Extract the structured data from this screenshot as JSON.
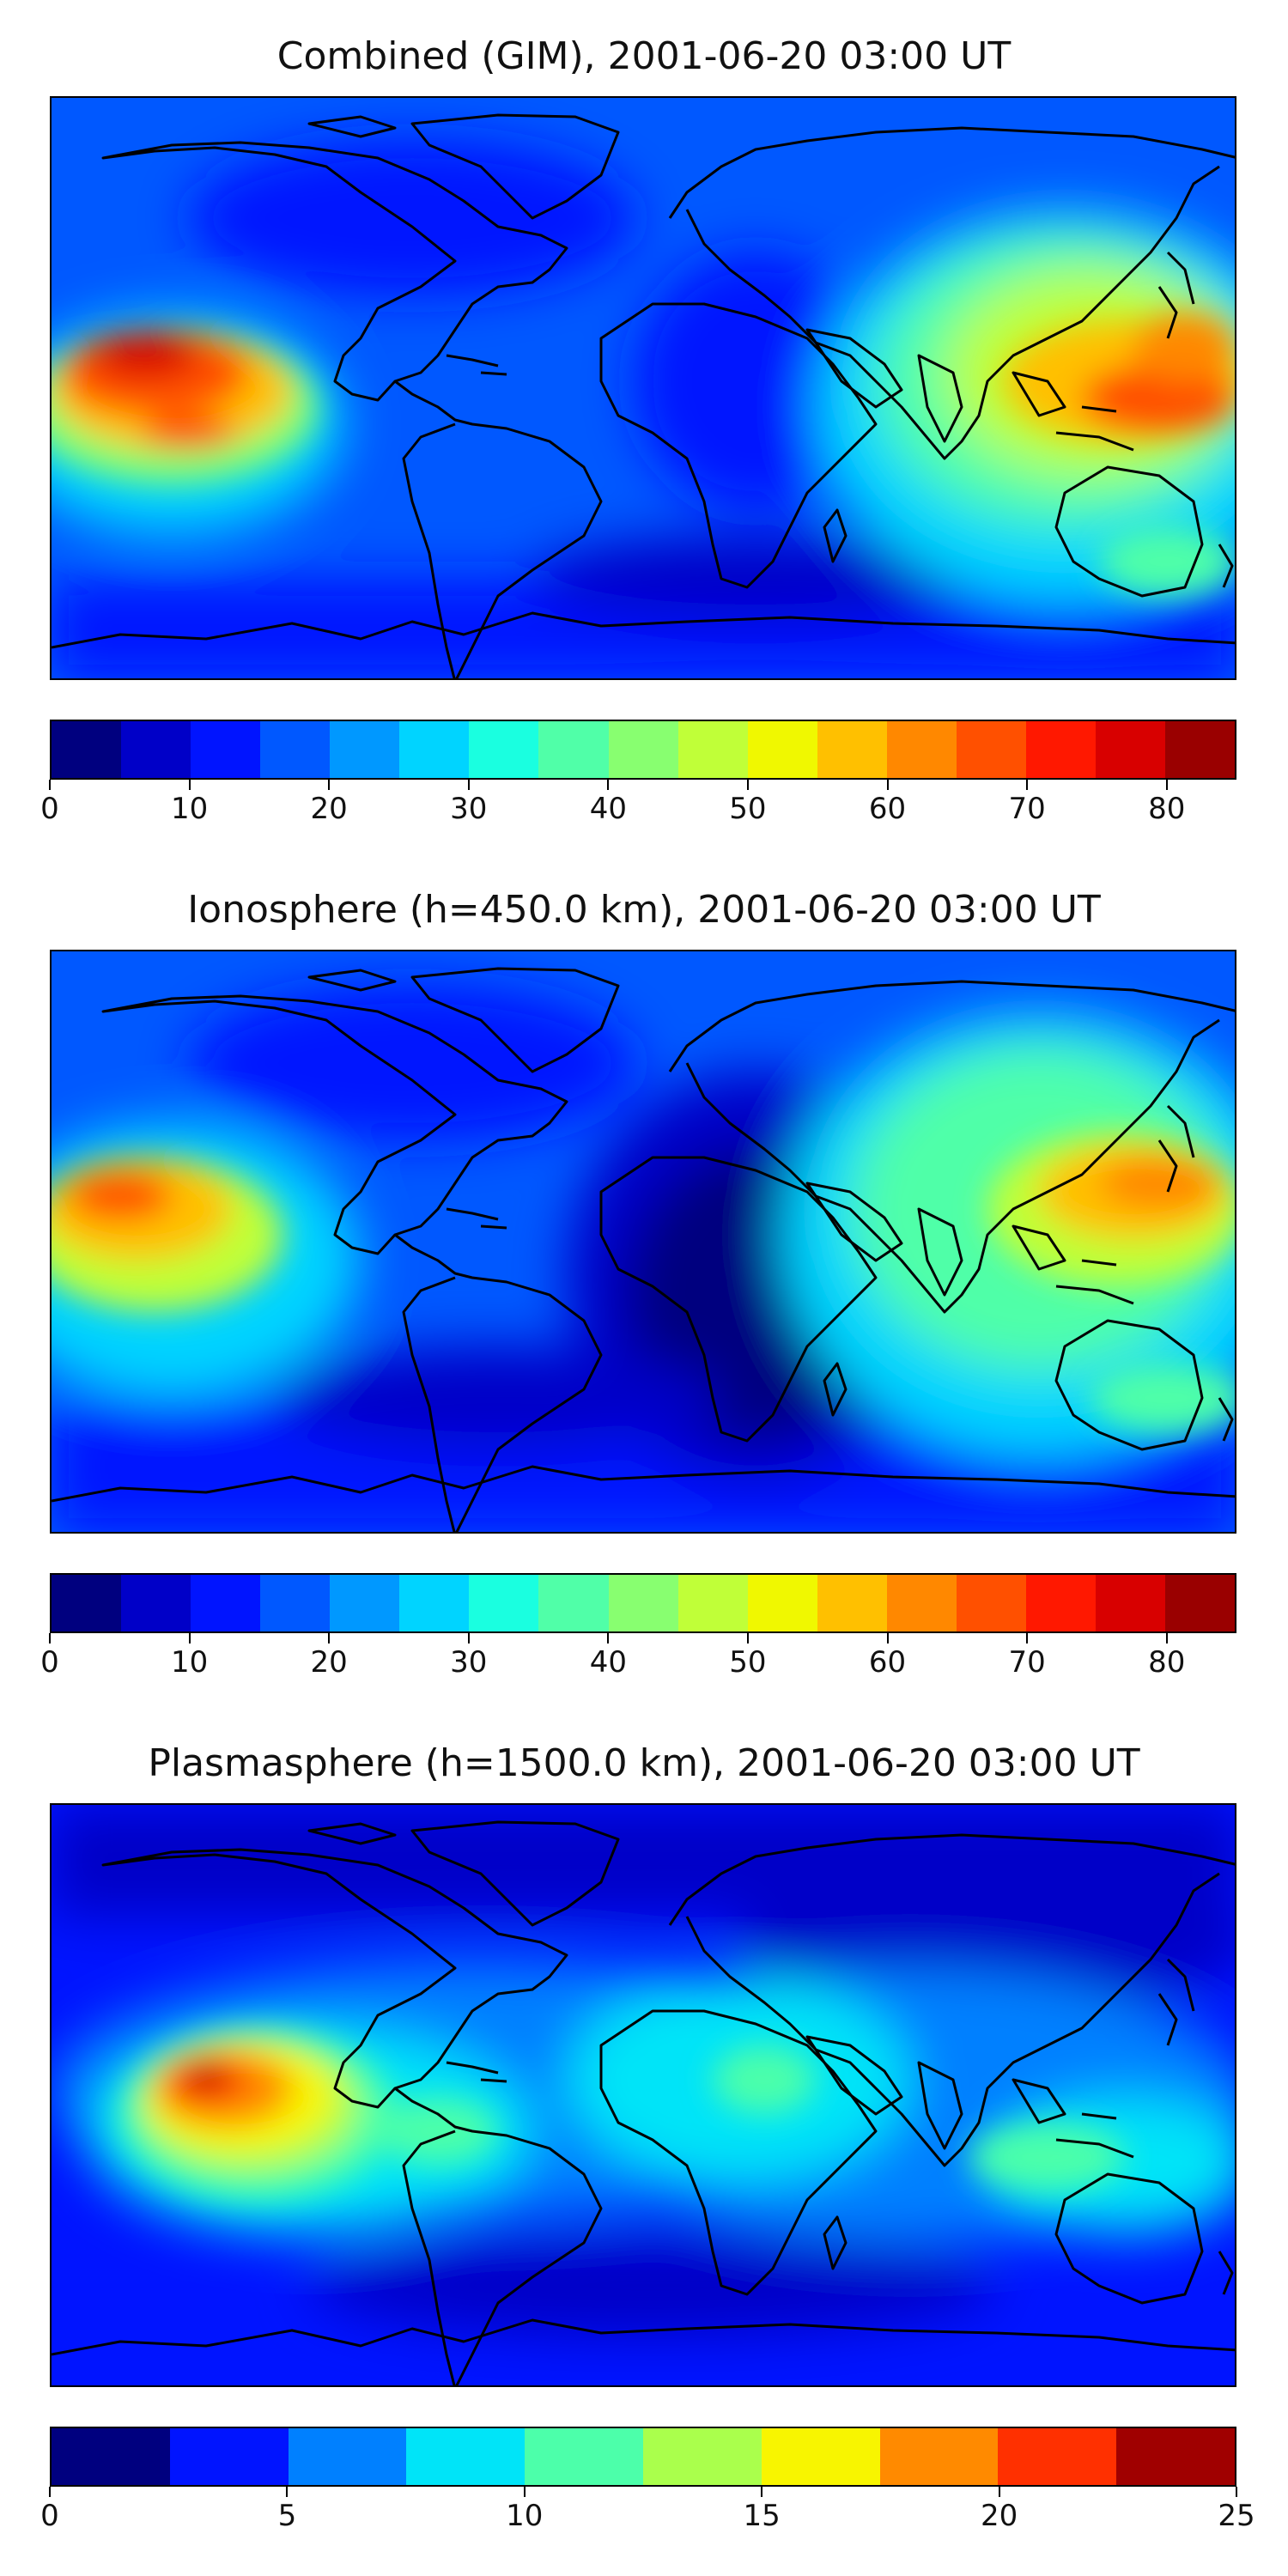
{
  "panels": [
    {
      "title": "Combined (GIM), 2001-06-20 03:00 UT",
      "colorbar": {
        "colors": [
          "#00007f",
          "#0000c8",
          "#0014ff",
          "#0058ff",
          "#0098ff",
          "#00d4ff",
          "#1affe0",
          "#50ffa8",
          "#88ff70",
          "#c0ff38",
          "#f0f800",
          "#ffc000",
          "#ff8800",
          "#ff5000",
          "#ff1800",
          "#d80000",
          "#9a0000"
        ],
        "ticks": [
          "0",
          "10",
          "20",
          "30",
          "40",
          "50",
          "60",
          "70",
          "80"
        ],
        "tick_values": [
          0,
          10,
          20,
          30,
          40,
          50,
          60,
          70,
          80
        ],
        "range": [
          0,
          85
        ]
      }
    },
    {
      "title": "Ionosphere  (h=450.0 km), 2001-06-20 03:00 UT",
      "colorbar": {
        "colors": [
          "#00007f",
          "#0000c8",
          "#0014ff",
          "#0058ff",
          "#0098ff",
          "#00d4ff",
          "#1affe0",
          "#50ffa8",
          "#88ff70",
          "#c0ff38",
          "#f0f800",
          "#ffc000",
          "#ff8800",
          "#ff5000",
          "#ff1800",
          "#d80000",
          "#9a0000"
        ],
        "ticks": [
          "0",
          "10",
          "20",
          "30",
          "40",
          "50",
          "60",
          "70",
          "80"
        ],
        "tick_values": [
          0,
          10,
          20,
          30,
          40,
          50,
          60,
          70,
          80
        ],
        "range": [
          0,
          85
        ]
      }
    },
    {
      "title": "Plasmasphere (h=1500.0 km), 2001-06-20 03:00 UT",
      "colorbar": {
        "colors": [
          "#00007f",
          "#0014ff",
          "#0080ff",
          "#00e4f8",
          "#4cffaa",
          "#aaff4c",
          "#f8f500",
          "#ff8a00",
          "#ff3000",
          "#a00000"
        ],
        "ticks": [
          "0",
          "5",
          "10",
          "15",
          "20",
          "25"
        ],
        "tick_values": [
          0,
          5,
          10,
          15,
          20,
          25
        ],
        "range": [
          0,
          25
        ]
      }
    }
  ]
}
